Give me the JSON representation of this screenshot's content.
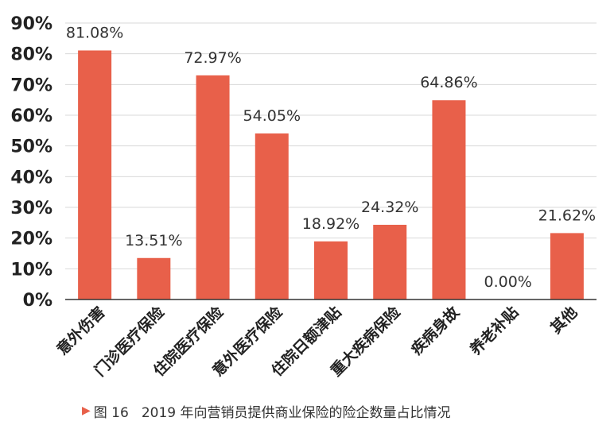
{
  "chart_data": {
    "type": "bar",
    "title": "",
    "xlabel": "",
    "ylabel": "",
    "ylim": [
      0,
      90
    ],
    "yticks": [
      "0%",
      "10%",
      "20%",
      "30%",
      "40%",
      "50%",
      "60%",
      "70%",
      "80%",
      "90%"
    ],
    "grid": true,
    "bar_color": "#e8604a",
    "categories": [
      "意外伤害",
      "门诊医疗保险",
      "住院医疗保险",
      "意外医疗保险",
      "住院日额津贴",
      "重大疾病保险",
      "疾病身故",
      "养老补贴",
      "其他"
    ],
    "values": [
      81.08,
      13.51,
      72.97,
      54.05,
      18.92,
      24.32,
      64.86,
      0.0,
      21.62
    ],
    "value_labels": [
      "81.08%",
      "13.51%",
      "72.97%",
      "54.05%",
      "18.92%",
      "24.32%",
      "64.86%",
      "0.00%",
      "21.62%"
    ]
  },
  "caption": {
    "marker": "▶",
    "figure_label": "图 16",
    "text": "2019 年向营销员提供商业保险的险企数量占比情况"
  }
}
